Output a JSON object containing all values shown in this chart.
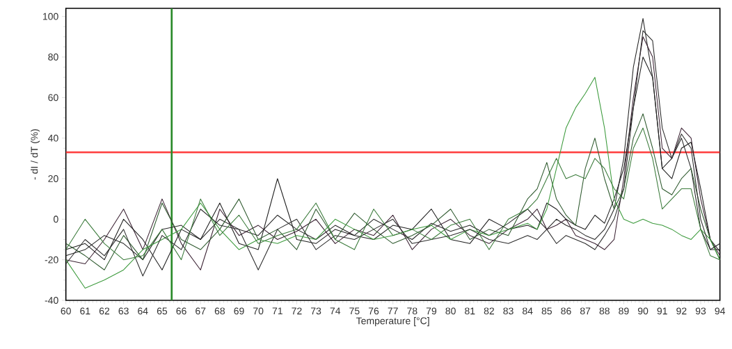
{
  "chart_data": {
    "type": "line",
    "xlabel": "Temperature [°C]",
    "ylabel": "- dI / dT (%)",
    "x": [
      60,
      61,
      62,
      63,
      64,
      65,
      66,
      67,
      68,
      69,
      70,
      71,
      72,
      73,
      74,
      75,
      76,
      77,
      78,
      79,
      80,
      81,
      82,
      83,
      84,
      84.5,
      85,
      85.5,
      86,
      86.5,
      87,
      87.5,
      88,
      88.5,
      89,
      89.5,
      90,
      90.5,
      91,
      91.5,
      92,
      92.5,
      93,
      93.5,
      94
    ],
    "series": [
      {
        "color": "#262626",
        "values": [
          -18,
          -15,
          -8,
          -12,
          -20,
          -5,
          -3,
          -10,
          0,
          -5,
          -8,
          2,
          -5,
          -10,
          -3,
          -8,
          0,
          -5,
          -10,
          -2,
          -6,
          -3,
          -8,
          -2,
          5,
          0,
          -5,
          0,
          -3,
          -5,
          -8,
          -10,
          -5,
          5,
          30,
          75,
          99,
          70,
          25,
          30,
          40,
          25,
          -5,
          -15,
          -15
        ]
      },
      {
        "color": "#3b2233",
        "values": [
          -20,
          -22,
          -10,
          5,
          -15,
          10,
          -12,
          -25,
          5,
          -8,
          -3,
          -10,
          -6,
          0,
          -12,
          -5,
          -8,
          2,
          -15,
          -5,
          0,
          -8,
          -12,
          -5,
          0,
          5,
          -5,
          -3,
          0,
          -8,
          -10,
          -12,
          -15,
          -10,
          20,
          60,
          90,
          80,
          35,
          30,
          45,
          40,
          10,
          -10,
          -18
        ]
      },
      {
        "color": "#1e1e1e",
        "values": [
          -15,
          -12,
          -20,
          0,
          -10,
          -25,
          -5,
          -10,
          8,
          -12,
          -15,
          20,
          -10,
          -12,
          -5,
          -8,
          -10,
          -3,
          -5,
          5,
          -10,
          -12,
          0,
          -5,
          -3,
          -5,
          8,
          5,
          0,
          -3,
          -5,
          2,
          -2,
          10,
          25,
          55,
          80,
          70,
          25,
          20,
          35,
          38,
          15,
          -10,
          -16
        ]
      },
      {
        "color": "#2f5a2f",
        "values": [
          -12,
          -18,
          -25,
          -8,
          -20,
          8,
          -10,
          -15,
          -5,
          10,
          -10,
          -5,
          -15,
          5,
          -10,
          3,
          -5,
          -12,
          -8,
          -3,
          5,
          -10,
          -5,
          -8,
          10,
          15,
          28,
          10,
          2,
          -3,
          25,
          40,
          20,
          5,
          15,
          40,
          52,
          35,
          15,
          12,
          20,
          25,
          5,
          -10,
          -20
        ]
      },
      {
        "color": "#3c9a3c",
        "values": [
          -20,
          -34,
          -30,
          -25,
          -15,
          -10,
          -5,
          8,
          -5,
          -15,
          -10,
          -12,
          -8,
          -10,
          0,
          -5,
          -10,
          -8,
          -5,
          -3,
          -10,
          -5,
          -8,
          -5,
          -2,
          -5,
          5,
          25,
          45,
          55,
          62,
          70,
          45,
          10,
          0,
          -2,
          0,
          -2,
          -3,
          -5,
          -8,
          -10,
          -5,
          -10,
          -20
        ]
      },
      {
        "color": "#2b2b2b",
        "values": [
          -22,
          -10,
          -18,
          -5,
          -28,
          -8,
          -15,
          5,
          -3,
          -5,
          -25,
          -5,
          0,
          -15,
          -8,
          -10,
          -5,
          0,
          -12,
          -10,
          -8,
          -5,
          -10,
          -12,
          -8,
          -10,
          -5,
          -12,
          -8,
          -10,
          -12,
          -15,
          -8,
          0,
          15,
          55,
          93,
          88,
          45,
          30,
          42,
          35,
          0,
          -15,
          -12
        ]
      },
      {
        "color": "#3a7a3a",
        "values": [
          -15,
          0,
          -12,
          -20,
          -18,
          -5,
          -20,
          10,
          -8,
          2,
          -12,
          -8,
          -5,
          8,
          -10,
          -15,
          5,
          -8,
          -5,
          -10,
          -3,
          0,
          -15,
          0,
          5,
          10,
          20,
          30,
          20,
          22,
          20,
          30,
          25,
          15,
          10,
          35,
          45,
          30,
          5,
          10,
          15,
          15,
          -5,
          -18,
          -20
        ]
      }
    ],
    "line_style": "solid",
    "xlim": [
      60,
      94
    ],
    "ylim": [
      -40,
      104
    ],
    "xticks": [
      60,
      61,
      62,
      63,
      64,
      65,
      66,
      67,
      68,
      69,
      70,
      71,
      72,
      73,
      74,
      75,
      76,
      77,
      78,
      79,
      80,
      81,
      82,
      83,
      84,
      85,
      86,
      87,
      88,
      89,
      90,
      91,
      92,
      93,
      94
    ],
    "yticks": [
      -40,
      -20,
      0,
      20,
      40,
      60,
      80,
      100
    ],
    "ref_lines": [
      {
        "axis": "y",
        "value": 33,
        "color": "#ff4040"
      },
      {
        "axis": "x",
        "value": 65.5,
        "color": "#2a8a2a"
      }
    ]
  }
}
